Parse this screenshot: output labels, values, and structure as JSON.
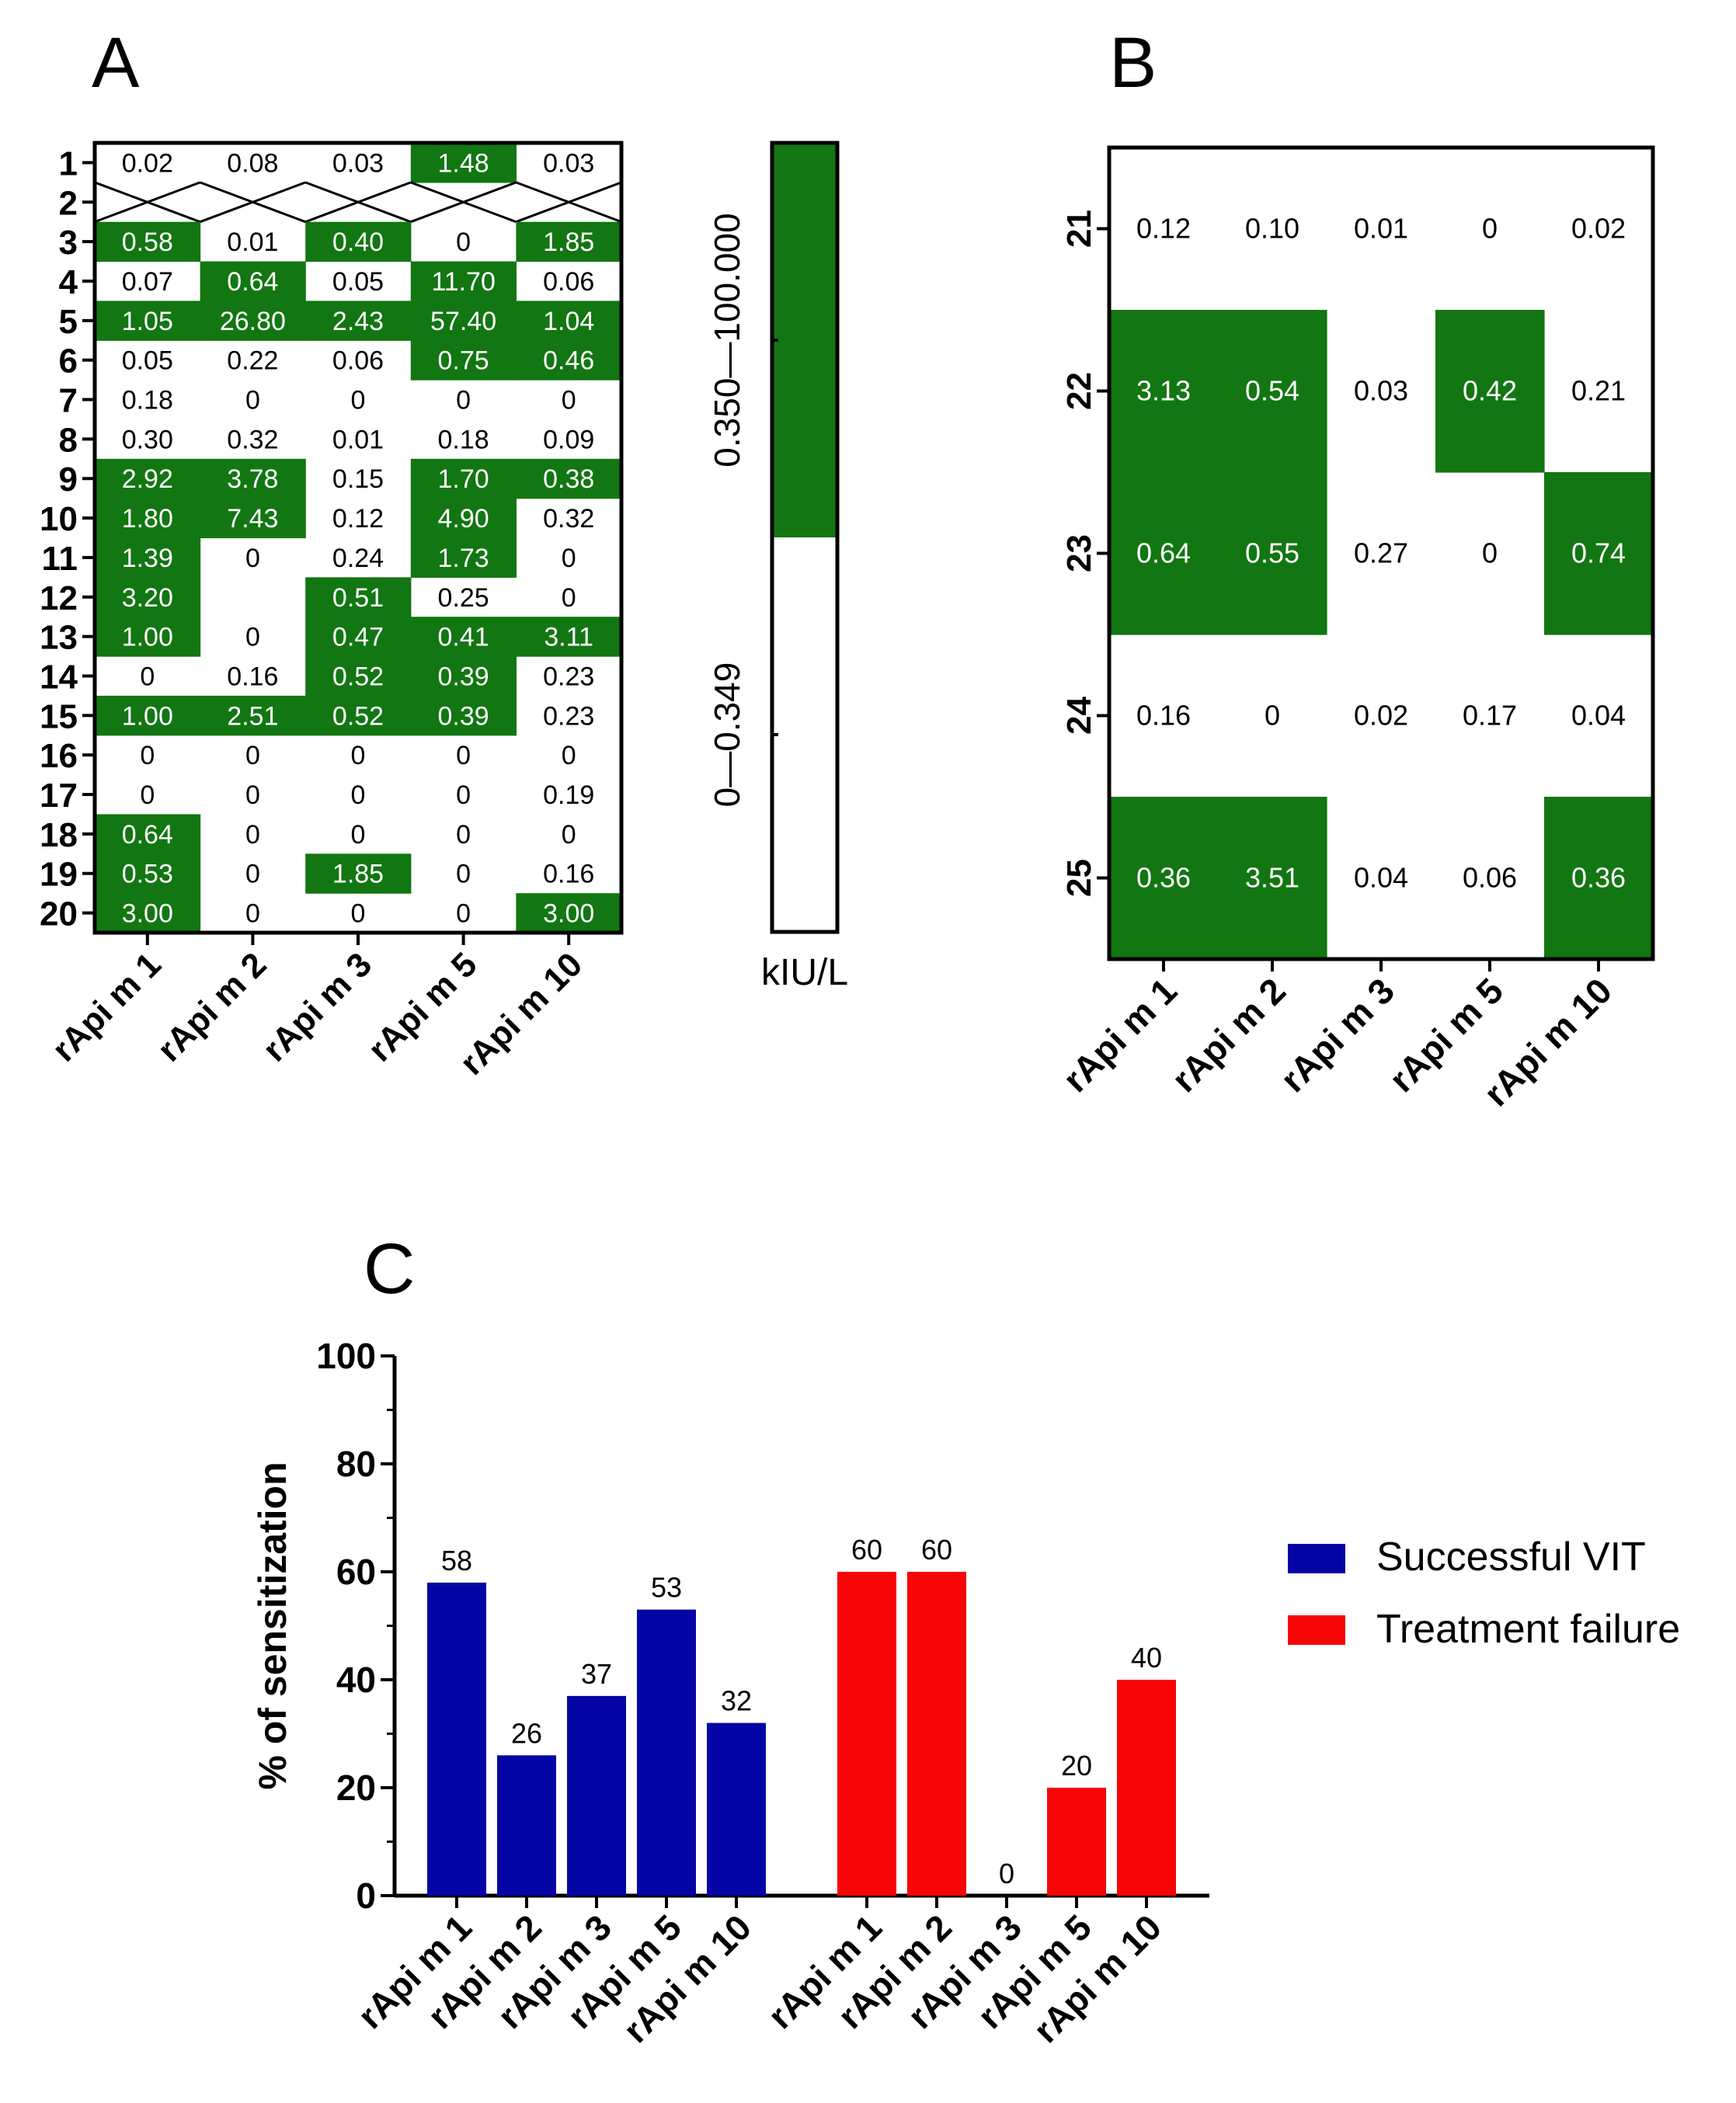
{
  "colors": {
    "positive": "#127612",
    "blue": "#0505a5",
    "red": "#f50505",
    "axis": "#000000",
    "cell_text_light": "#ffffff",
    "cell_text_dark": "#000000"
  },
  "panel_a": {
    "letter": "A",
    "patients": [
      "1",
      "2",
      "3",
      "4",
      "5",
      "6",
      "7",
      "8",
      "9",
      "10",
      "11",
      "12",
      "13",
      "14",
      "15",
      "16",
      "17",
      "18",
      "19",
      "20"
    ],
    "allergens": [
      "rApi m 1",
      "rApi m 2",
      "rApi m 3",
      "rApi m 5",
      "rApi m 10"
    ],
    "rows": [
      [
        "0.02",
        "0.08",
        "0.03",
        "1.48",
        "0.03"
      ],
      null,
      [
        "0.58",
        "0.01",
        "0.40",
        "0",
        "1.85"
      ],
      [
        "0.07",
        "0.64",
        "0.05",
        "11.70",
        "0.06"
      ],
      [
        "1.05",
        "26.80",
        "2.43",
        "57.40",
        "1.04"
      ],
      [
        "0.05",
        "0.22",
        "0.06",
        "0.75",
        "0.46"
      ],
      [
        "0.18",
        "0",
        "0",
        "0",
        "0"
      ],
      [
        "0.30",
        "0.32",
        "0.01",
        "0.18",
        "0.09"
      ],
      [
        "2.92",
        "3.78",
        "0.15",
        "1.70",
        "0.38"
      ],
      [
        "1.80",
        "7.43",
        "0.12",
        "4.90",
        "0.32"
      ],
      [
        "1.39",
        "0",
        "0.24",
        "1.73",
        "0"
      ],
      [
        "3.20",
        "",
        "0.51",
        "0.25",
        "0"
      ],
      [
        "1.00",
        "0",
        "0.47",
        "0.41",
        "3.11"
      ],
      [
        "0",
        "0.16",
        "0.52",
        "0.39",
        "0.23"
      ],
      [
        "1.00",
        "2.51",
        "0.52",
        "0.39",
        "0.23"
      ],
      [
        "0",
        "0",
        "0",
        "0",
        "0"
      ],
      [
        "0",
        "0",
        "0",
        "0",
        "0.19"
      ],
      [
        "0.64",
        "0",
        "0",
        "0",
        "0"
      ],
      [
        "0.53",
        "0",
        "1.85",
        "0",
        "0.16"
      ],
      [
        "3.00",
        "0",
        "0",
        "0",
        "3.00"
      ]
    ],
    "positive": [
      [
        0,
        0,
        0,
        1,
        0
      ],
      [
        0,
        0,
        0,
        0,
        0
      ],
      [
        1,
        0,
        1,
        0,
        1
      ],
      [
        0,
        1,
        0,
        1,
        0
      ],
      [
        1,
        1,
        1,
        1,
        1
      ],
      [
        0,
        0,
        0,
        1,
        1
      ],
      [
        0,
        0,
        0,
        0,
        0
      ],
      [
        0,
        0,
        0,
        0,
        0
      ],
      [
        1,
        1,
        0,
        1,
        1
      ],
      [
        1,
        1,
        0,
        1,
        0
      ],
      [
        1,
        0,
        0,
        1,
        0
      ],
      [
        1,
        0,
        1,
        0,
        0
      ],
      [
        1,
        0,
        1,
        1,
        1
      ],
      [
        0,
        0,
        1,
        1,
        0
      ],
      [
        1,
        1,
        1,
        1,
        0
      ],
      [
        0,
        0,
        0,
        0,
        0
      ],
      [
        0,
        0,
        0,
        0,
        0
      ],
      [
        1,
        0,
        0,
        0,
        0
      ],
      [
        1,
        0,
        1,
        0,
        0
      ],
      [
        1,
        0,
        0,
        0,
        1
      ]
    ]
  },
  "legend_scale": {
    "high_label": "0.350—100.000",
    "low_label": "0—0.349",
    "unit": "kIU/L"
  },
  "panel_b": {
    "letter": "B",
    "patients": [
      "21",
      "22",
      "23",
      "24",
      "25"
    ],
    "allergens": [
      "rApi m 1",
      "rApi m 2",
      "rApi m 3",
      "rApi m 5",
      "rApi m 10"
    ],
    "rows": [
      [
        "0.12",
        "0.10",
        "0.01",
        "0",
        "0.02"
      ],
      [
        "3.13",
        "0.54",
        "0.03",
        "0.42",
        "0.21"
      ],
      [
        "0.64",
        "0.55",
        "0.27",
        "0",
        "0.74"
      ],
      [
        "0.16",
        "0",
        "0.02",
        "0.17",
        "0.04"
      ],
      [
        "0.36",
        "3.51",
        "0.04",
        "0.06",
        "0.36"
      ]
    ],
    "positive": [
      [
        0,
        0,
        0,
        0,
        0
      ],
      [
        1,
        1,
        0,
        1,
        0
      ],
      [
        1,
        1,
        0,
        0,
        1
      ],
      [
        0,
        0,
        0,
        0,
        0
      ],
      [
        1,
        1,
        0,
        0,
        1
      ]
    ]
  },
  "panel_c": {
    "letter": "C",
    "ylabel": "% of sensitization",
    "yticks": [
      "0",
      "20",
      "40",
      "60",
      "80",
      "100"
    ]
  },
  "chart_data": [
    {
      "type": "heatmap",
      "title": "A",
      "unit": "kIU/L",
      "x": [
        "rApi m 1",
        "rApi m 2",
        "rApi m 3",
        "rApi m 5",
        "rApi m 10"
      ],
      "y": [
        "1",
        "2",
        "3",
        "4",
        "5",
        "6",
        "7",
        "8",
        "9",
        "10",
        "11",
        "12",
        "13",
        "14",
        "15",
        "16",
        "17",
        "18",
        "19",
        "20"
      ],
      "threshold": "0.350",
      "note": "Patient 2 not tested (crossed-out row)"
    },
    {
      "type": "heatmap",
      "title": "B",
      "unit": "kIU/L",
      "x": [
        "rApi m 1",
        "rApi m 2",
        "rApi m 3",
        "rApi m 5",
        "rApi m 10"
      ],
      "y": [
        "21",
        "22",
        "23",
        "24",
        "25"
      ],
      "threshold": "0.350"
    },
    {
      "type": "bar",
      "title": "C",
      "ylabel": "% of sensitization",
      "ylim": [
        0,
        100
      ],
      "categories": [
        "rApi m 1",
        "rApi m 2",
        "rApi m 3",
        "rApi m 5",
        "rApi m 10"
      ],
      "series": [
        {
          "name": "Successful VIT",
          "values": [
            58,
            26,
            37,
            53,
            32
          ]
        },
        {
          "name": "Treatment failure",
          "values": [
            60,
            60,
            0,
            20,
            40
          ]
        }
      ],
      "legend": "right"
    }
  ]
}
